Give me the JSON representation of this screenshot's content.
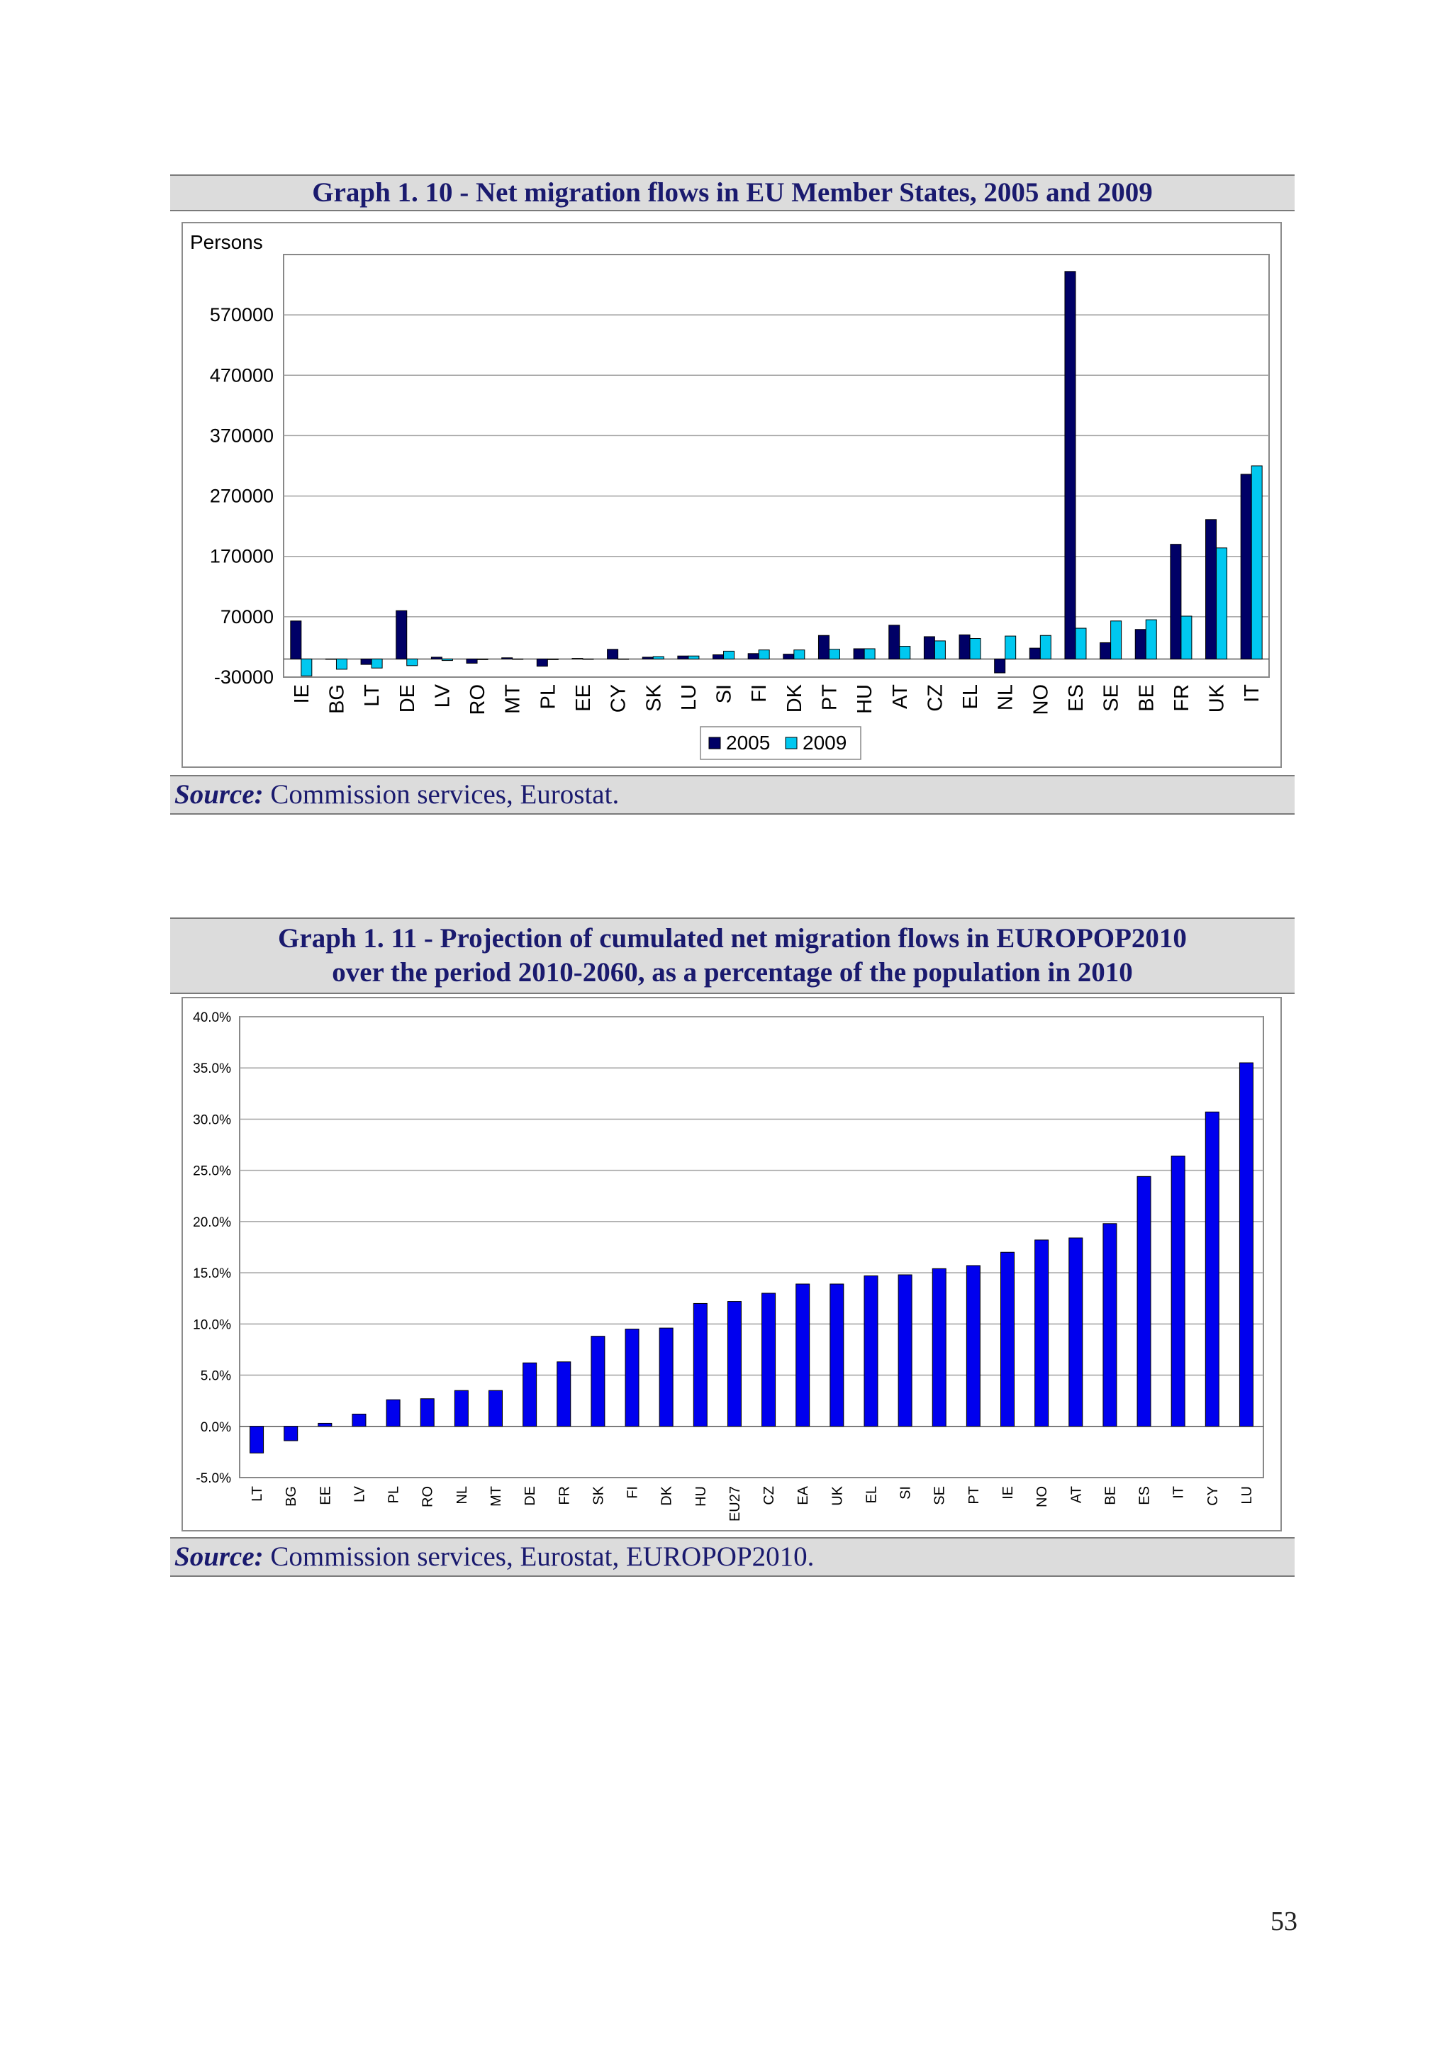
{
  "page_number": "53",
  "graph1": {
    "title": "Graph 1. 10 - Net migration flows in EU Member States, 2005 and 2009",
    "source_label": "Source:",
    "source_text": " Commission services, Eurostat.",
    "chart_data": {
      "type": "bar",
      "ylabel": "Persons",
      "ylim": [
        -30000,
        670000
      ],
      "yticks": [
        -30000,
        70000,
        170000,
        270000,
        370000,
        470000,
        570000
      ],
      "grid": true,
      "legend_placement": "bottom-center",
      "categories": [
        "IE",
        "BG",
        "LT",
        "DE",
        "LV",
        "RO",
        "MT",
        "PL",
        "EE",
        "CY",
        "SK",
        "LU",
        "SI",
        "FI",
        "DK",
        "PT",
        "HU",
        "AT",
        "CZ",
        "EL",
        "NL",
        "NO",
        "ES",
        "SE",
        "BE",
        "FR",
        "UK",
        "IT"
      ],
      "series": [
        {
          "name": "2005",
          "color": "#000066",
          "values": [
            63000,
            0,
            -9000,
            80000,
            3000,
            -7000,
            2000,
            -12000,
            1000,
            16000,
            3000,
            5000,
            7000,
            9000,
            8000,
            39000,
            17000,
            56000,
            37000,
            40000,
            -23000,
            18000,
            642000,
            27000,
            49000,
            190000,
            231000,
            306000
          ]
        },
        {
          "name": "2009",
          "color": "#00c8f0",
          "values": [
            -28000,
            -17000,
            -15000,
            -11000,
            -2500,
            -1000,
            0,
            -1000,
            0,
            0,
            4000,
            5000,
            13000,
            15000,
            15000,
            16000,
            17000,
            21000,
            30000,
            34000,
            38000,
            39000,
            51000,
            63000,
            65000,
            71000,
            184000,
            320000
          ]
        }
      ]
    }
  },
  "graph2": {
    "title_line1": "Graph 1. 11 - Projection of cumulated net migration flows in EUROPOP2010",
    "title_line2": "over the period 2010-2060, as a percentage of the population in 2010",
    "source_label": "Source:",
    "source_text": " Commission services, Eurostat, EUROPOP2010.",
    "chart_data": {
      "type": "bar",
      "ylim": [
        -5.0,
        40.0
      ],
      "yticks": [
        -5.0,
        0.0,
        5.0,
        10.0,
        15.0,
        20.0,
        25.0,
        30.0,
        35.0,
        40.0
      ],
      "ytick_format": "percent_1dp",
      "grid": true,
      "color": "#0000ee",
      "categories": [
        "LT",
        "BG",
        "EE",
        "LV",
        "PL",
        "RO",
        "NL",
        "MT",
        "DE",
        "FR",
        "SK",
        "FI",
        "DK",
        "HU",
        "EU27",
        "CZ",
        "EA",
        "UK",
        "EL",
        "SI",
        "SE",
        "PT",
        "IE",
        "NO",
        "AT",
        "BE",
        "ES",
        "IT",
        "CY",
        "LU"
      ],
      "values": [
        -2.6,
        -1.4,
        0.3,
        1.2,
        2.6,
        2.7,
        3.5,
        3.5,
        6.2,
        6.3,
        8.8,
        9.5,
        9.6,
        12.0,
        12.2,
        13.0,
        13.9,
        13.9,
        14.7,
        14.8,
        15.4,
        15.7,
        17.0,
        18.2,
        18.4,
        19.8,
        24.4,
        26.4,
        30.7,
        35.5
      ]
    }
  }
}
